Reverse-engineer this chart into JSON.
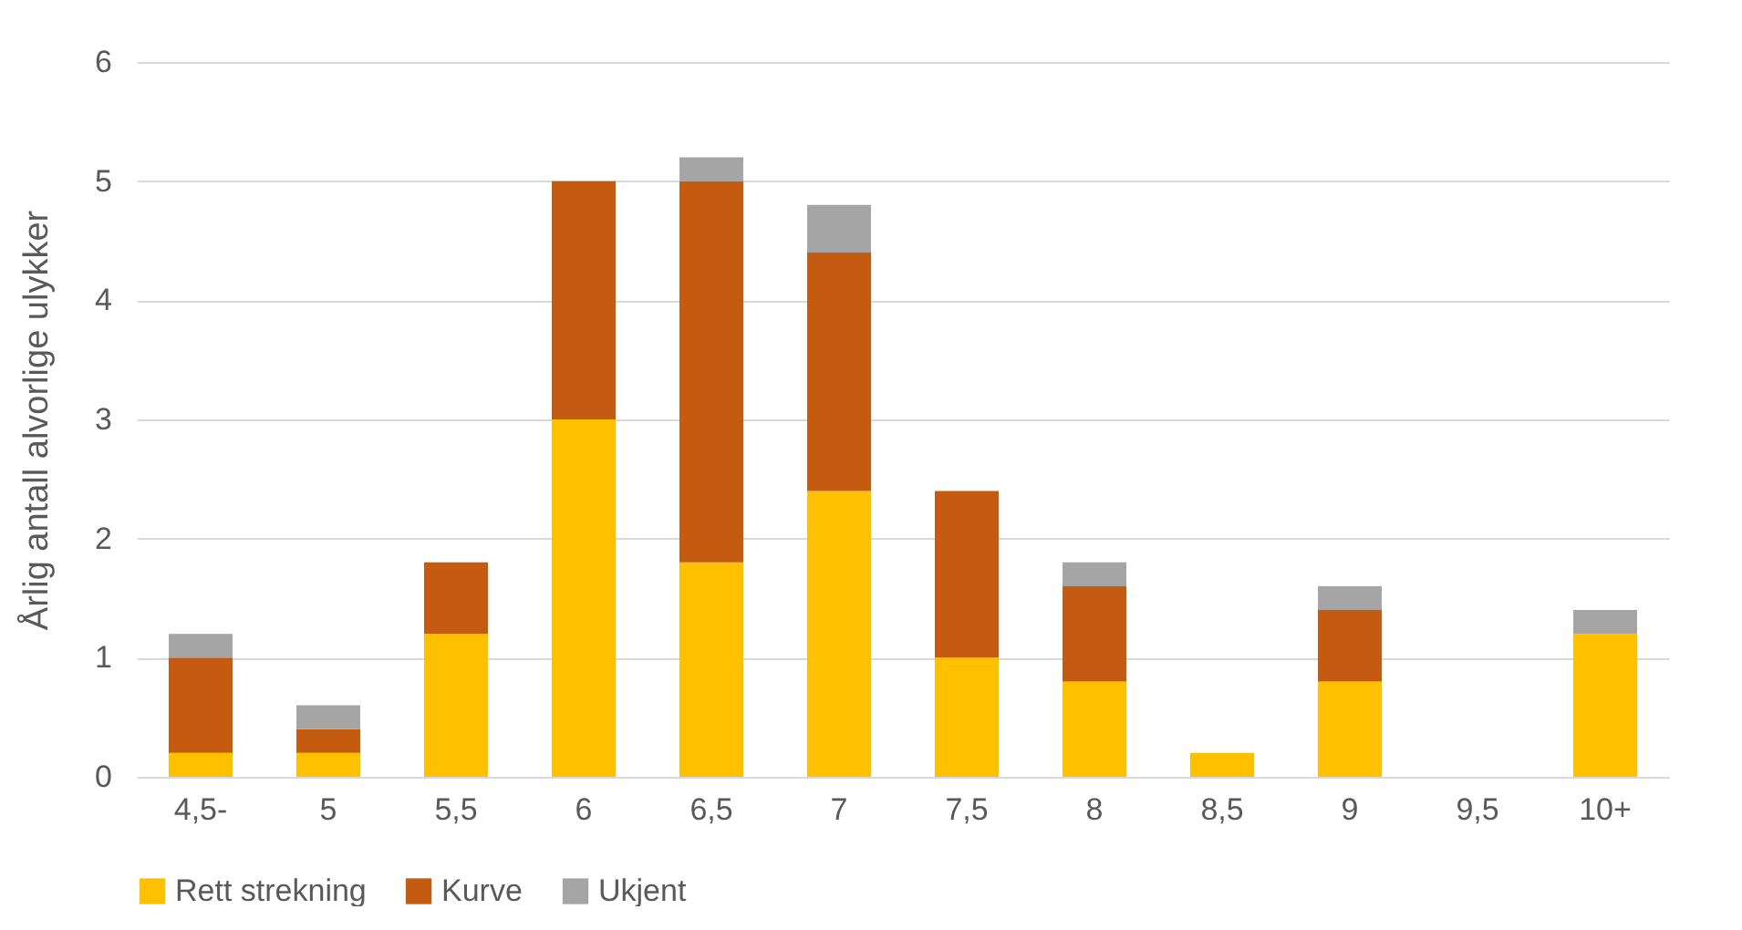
{
  "chart_data": {
    "type": "bar",
    "stacked": true,
    "ylabel": "Årlig antall alvorlige ulykker",
    "categories": [
      "4,5-",
      "5",
      "5,5",
      "6",
      "6,5",
      "7",
      "7,5",
      "8",
      "8,5",
      "9",
      "9,5",
      "10+"
    ],
    "series": [
      {
        "name": "Rett strekning",
        "color": "#ffc000",
        "values": [
          0.2,
          0.2,
          1.2,
          3,
          1.8,
          2.4,
          1,
          0.8,
          0.2,
          0.8,
          null,
          1.2
        ]
      },
      {
        "name": "Kurve",
        "color": "#c55a11",
        "values": [
          0.8,
          0.2,
          0.6,
          2,
          3.2,
          2,
          1.4,
          0.8,
          null,
          0.6,
          null,
          null
        ]
      },
      {
        "name": "Ukjent",
        "color": "#a5a5a5",
        "values": [
          0.2,
          0.2,
          null,
          null,
          0.2,
          0.4,
          null,
          0.2,
          null,
          0.2,
          null,
          0.2
        ]
      }
    ],
    "ylim": [
      0,
      6
    ],
    "yticks": [
      0,
      1,
      2,
      3,
      4,
      5,
      6
    ],
    "grid": "y",
    "legend": "bottom"
  }
}
